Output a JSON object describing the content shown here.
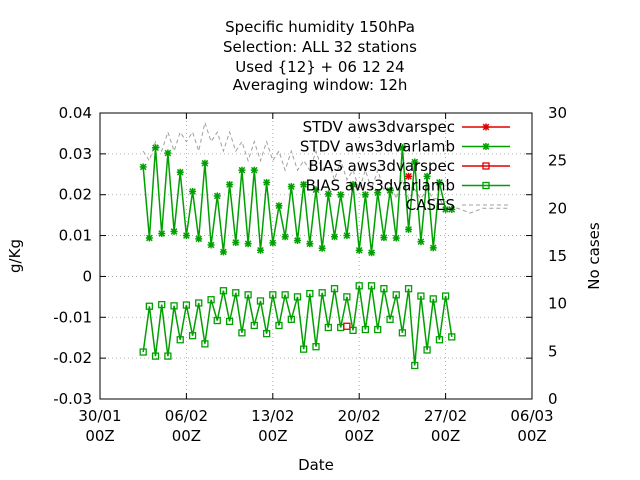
{
  "chart_data": {
    "type": "line",
    "title_lines": [
      "Specific humidity 150hPa",
      "Selection: ALL      32 stations",
      "Used {12} + 06 12 24",
      "Averaging window: 12h"
    ],
    "xlabel": "Date",
    "ylabel": "g/Kg",
    "y2label": "No cases",
    "x_tick_labels": [
      [
        "30/01",
        "00Z"
      ],
      [
        "06/02",
        "00Z"
      ],
      [
        "13/02",
        "00Z"
      ],
      [
        "20/02",
        "00Z"
      ],
      [
        "27/02",
        "00Z"
      ],
      [
        "06/03",
        "00Z"
      ]
    ],
    "x_range_days": [
      0,
      35
    ],
    "ylim": [
      -0.03,
      0.04
    ],
    "y_ticks": [
      "-0.03",
      "-0.02",
      "-0.01",
      "0",
      "0.01",
      "0.02",
      "0.03",
      "0.04"
    ],
    "y2lim": [
      0,
      30
    ],
    "y2_ticks": [
      "0",
      "5",
      "10",
      "15",
      "20",
      "25",
      "30"
    ],
    "grid": true,
    "legend_position": "top-right",
    "colors": {
      "red": "#e00000",
      "green": "#00a000",
      "gray": "#a0a0a0"
    },
    "series": [
      {
        "name": "STDV aws3dvarspec",
        "color": "#e00000",
        "marker": "star",
        "axis": "y1",
        "x": [
          25.0
        ],
        "values": [
          0.0245
        ]
      },
      {
        "name": "STDV aws3dvarlamb",
        "color": "#00a000",
        "marker": "star",
        "axis": "y1",
        "x": [
          3.5,
          4.0,
          4.5,
          5.0,
          5.5,
          6.0,
          6.5,
          7.0,
          7.5,
          8.0,
          8.5,
          9.0,
          9.5,
          10.0,
          10.5,
          11.0,
          11.5,
          12.0,
          12.5,
          13.0,
          13.5,
          14.0,
          14.5,
          15.0,
          15.5,
          16.0,
          16.5,
          17.0,
          17.5,
          18.0,
          18.5,
          19.0,
          19.5,
          20.0,
          20.5,
          21.0,
          21.5,
          22.0,
          22.5,
          23.0,
          23.5,
          24.0,
          24.5,
          25.0,
          25.5,
          26.0,
          26.5,
          27.0,
          27.5,
          28.0,
          28.5
        ],
        "values": [
          0.0268,
          0.0094,
          0.0315,
          0.0105,
          0.0302,
          0.011,
          0.0255,
          0.01,
          0.0208,
          0.0092,
          0.0277,
          0.0077,
          0.0197,
          0.006,
          0.0225,
          0.0083,
          0.026,
          0.008,
          0.026,
          0.0064,
          0.023,
          0.0082,
          0.0173,
          0.0097,
          0.022,
          0.0088,
          0.0225,
          0.008,
          0.0212,
          0.0069,
          0.0202,
          0.0097,
          0.02,
          0.01,
          0.0225,
          0.0064,
          0.02,
          0.0058,
          0.0205,
          0.0095,
          0.021,
          0.0094,
          0.0315,
          0.0115,
          0.028,
          0.0085,
          0.0245,
          0.007,
          0.023,
          0.0164,
          0.0164
        ]
      },
      {
        "name": "BIAS aws3dvarspec",
        "color": "#e00000",
        "marker": "square",
        "axis": "y1",
        "x": [
          20.0
        ],
        "values": [
          -0.0122
        ]
      },
      {
        "name": "BIAS aws3dvarlamb",
        "color": "#00a000",
        "marker": "square",
        "axis": "y1",
        "x": [
          3.5,
          4.0,
          4.5,
          5.0,
          5.5,
          6.0,
          6.5,
          7.0,
          7.5,
          8.0,
          8.5,
          9.0,
          9.5,
          10.0,
          10.5,
          11.0,
          11.5,
          12.0,
          12.5,
          13.0,
          13.5,
          14.0,
          14.5,
          15.0,
          15.5,
          16.0,
          16.5,
          17.0,
          17.5,
          18.0,
          18.5,
          19.0,
          19.5,
          20.0,
          20.5,
          21.0,
          21.5,
          22.0,
          22.5,
          23.0,
          23.5,
          24.0,
          24.5,
          25.0,
          25.5,
          26.0,
          26.5,
          27.0,
          27.5,
          28.0,
          28.5
        ],
        "values": [
          -0.0185,
          -0.0073,
          -0.0195,
          -0.0069,
          -0.0195,
          -0.0072,
          -0.0155,
          -0.007,
          -0.0145,
          -0.0065,
          -0.0165,
          -0.0057,
          -0.0108,
          -0.0035,
          -0.011,
          -0.004,
          -0.0138,
          -0.0045,
          -0.012,
          -0.006,
          -0.014,
          -0.0045,
          -0.012,
          -0.0045,
          -0.0105,
          -0.005,
          -0.0178,
          -0.0042,
          -0.0172,
          -0.004,
          -0.0125,
          -0.003,
          -0.0125,
          -0.005,
          -0.0132,
          -0.0023,
          -0.013,
          -0.0023,
          -0.013,
          -0.003,
          -0.0105,
          -0.0045,
          -0.0138,
          -0.003,
          -0.0218,
          -0.0048,
          -0.018,
          -0.0055,
          -0.0155,
          -0.0048,
          -0.0148
        ]
      },
      {
        "name": "CASES",
        "color": "#a0a0a0",
        "dash": true,
        "axis": "y2",
        "x": [
          3.5,
          4.0,
          4.5,
          5.0,
          5.5,
          6.0,
          6.5,
          7.0,
          7.5,
          8.0,
          8.5,
          9.0,
          9.5,
          10.0,
          10.5,
          11.0,
          11.5,
          12.0,
          12.5,
          13.0,
          13.5,
          14.0,
          14.5,
          15.0,
          15.5,
          16.0,
          16.5,
          17.0,
          17.5,
          18.0,
          18.5,
          19.0,
          19.5,
          20.0,
          20.5,
          21.0,
          21.5,
          22.0,
          22.5,
          23.0,
          23.5,
          24.0,
          24.5,
          25.0,
          25.5,
          26.0,
          26.5,
          27.0,
          27.5,
          28.0,
          28.5,
          29.0,
          30.0,
          31.0,
          32.0,
          33.0
        ],
        "values": [
          26,
          25,
          27,
          26,
          28,
          26,
          28,
          27,
          28,
          26,
          29,
          27,
          28,
          26,
          28,
          26,
          27,
          25,
          27,
          25,
          27,
          25,
          26,
          24,
          26,
          24,
          25,
          24,
          26,
          24,
          25,
          23,
          25,
          23,
          24,
          22,
          24,
          22,
          24,
          22,
          23,
          21,
          23,
          21,
          22,
          21,
          22,
          21,
          21,
          20,
          20,
          20,
          19.5,
          20,
          20,
          20
        ]
      }
    ]
  }
}
